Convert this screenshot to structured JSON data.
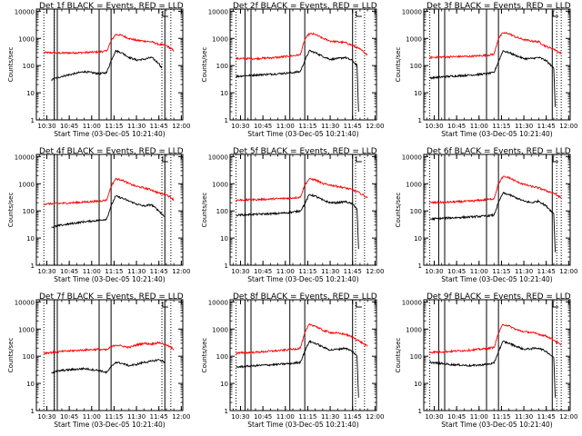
{
  "chart_data": {
    "type": "line",
    "layout": "3x3 grid",
    "x_axis": {
      "label": "Start Time (03-Dec-05 10:21:40)",
      "ticks": [
        "10:30",
        "10:45",
        "11:00",
        "11:15",
        "11:30",
        "11:45",
        "12:00"
      ],
      "range": [
        "10:23",
        "12:01"
      ]
    },
    "y_axis": {
      "label": "Counts/sec",
      "scale": "log",
      "ticks": [
        "1",
        "10",
        "100",
        "1000",
        "10000"
      ],
      "range": [
        1,
        12000
      ]
    },
    "grid": false,
    "series_colors": {
      "events": "#000000",
      "lld": "#ff0000"
    },
    "panels": [
      {
        "title": "Det 1f BLACK = Events, RED = LLD",
        "vlines_solid": [
          "10:35",
          "10:37",
          "11:05",
          "11:13",
          "11:49"
        ],
        "vlines_dotted": [
          "10:28",
          "10:35",
          "11:47",
          "11:53"
        ],
        "series": [
          {
            "key": "lld",
            "x": [
              "10:28",
              "10:40",
              "10:55",
              "11:05",
              "11:10",
              "11:13",
              "11:16",
              "11:20",
              "11:25",
              "11:30",
              "11:35",
              "11:40",
              "11:45",
              "11:50",
              "11:55"
            ],
            "y": [
              300,
              290,
              300,
              320,
              340,
              800,
              1400,
              1300,
              1000,
              850,
              800,
              750,
              600,
              550,
              350
            ]
          },
          {
            "key": "events",
            "x": [
              "10:33",
              "10:40",
              "10:55",
              "11:05",
              "11:10",
              "11:13",
              "11:16",
              "11:20",
              "11:25",
              "11:30",
              "11:35",
              "11:40",
              "11:45",
              "11:47"
            ],
            "y": [
              30,
              40,
              60,
              50,
              55,
              150,
              350,
              300,
              200,
              160,
              170,
              200,
              120,
              80
            ]
          }
        ]
      },
      {
        "title": "Det 2f BLACK = Events, RED = LLD",
        "vlines_solid": [
          "10:33",
          "10:37",
          "11:03",
          "11:13",
          "11:45"
        ],
        "vlines_dotted": [
          "10:27",
          "11:47",
          "11:53"
        ],
        "series": [
          {
            "key": "lld",
            "x": [
              "10:27",
              "10:40",
              "10:55",
              "11:05",
              "11:10",
              "11:13",
              "11:16",
              "11:20",
              "11:25",
              "11:30",
              "11:35",
              "11:40",
              "11:45",
              "11:50",
              "11:55"
            ],
            "y": [
              180,
              180,
              200,
              230,
              250,
              900,
              1500,
              1400,
              1000,
              800,
              750,
              700,
              550,
              400,
              250
            ]
          },
          {
            "key": "events",
            "x": [
              "10:27",
              "10:40",
              "10:55",
              "11:05",
              "11:10",
              "11:13",
              "11:16",
              "11:20",
              "11:25",
              "11:30",
              "11:35",
              "11:40",
              "11:45",
              "11:48",
              "11:49"
            ],
            "y": [
              40,
              45,
              50,
              55,
              60,
              150,
              350,
              300,
              220,
              170,
              180,
              200,
              150,
              100,
              2
            ]
          }
        ]
      },
      {
        "title": "Det 3f BLACK = Events, RED = LLD",
        "vlines_solid": [
          "10:33",
          "10:37",
          "11:05",
          "11:13",
          "11:49"
        ],
        "vlines_dotted": [
          "10:27",
          "11:52",
          "11:55"
        ],
        "series": [
          {
            "key": "lld",
            "x": [
              "10:27",
              "10:40",
              "10:55",
              "11:05",
              "11:10",
              "11:13",
              "11:16",
              "11:20",
              "11:25",
              "11:30",
              "11:35",
              "11:40",
              "11:45",
              "11:50",
              "11:55"
            ],
            "y": [
              200,
              210,
              220,
              240,
              260,
              1000,
              1600,
              1500,
              1100,
              900,
              800,
              750,
              500,
              400,
              280
            ]
          },
          {
            "key": "events",
            "x": [
              "10:27",
              "10:40",
              "10:55",
              "11:05",
              "11:10",
              "11:13",
              "11:16",
              "11:20",
              "11:25",
              "11:30",
              "11:35",
              "11:40",
              "11:45",
              "11:50",
              "11:51"
            ],
            "y": [
              35,
              40,
              45,
              50,
              55,
              140,
              350,
              300,
              230,
              180,
              180,
              200,
              150,
              80,
              3
            ]
          }
        ]
      },
      {
        "title": "Det 4f BLACK = Events, RED = LLD",
        "vlines_solid": [
          "10:35",
          "10:37",
          "11:05",
          "11:13",
          "11:49"
        ],
        "vlines_dotted": [
          "10:28",
          "10:35",
          "11:47",
          "11:53"
        ],
        "series": [
          {
            "key": "lld",
            "x": [
              "10:28",
              "10:40",
              "10:55",
              "11:05",
              "11:10",
              "11:13",
              "11:16",
              "11:20",
              "11:25",
              "11:30",
              "11:35",
              "11:40",
              "11:45",
              "11:50",
              "11:55"
            ],
            "y": [
              180,
              190,
              210,
              230,
              250,
              800,
              1500,
              1400,
              1000,
              800,
              700,
              600,
              450,
              400,
              260
            ]
          },
          {
            "key": "events",
            "x": [
              "10:33",
              "10:40",
              "10:55",
              "11:05",
              "11:10",
              "11:13",
              "11:16",
              "11:20",
              "11:25",
              "11:30",
              "11:35",
              "11:40",
              "11:45",
              "11:49"
            ],
            "y": [
              25,
              30,
              40,
              45,
              50,
              150,
              350,
              300,
              230,
              180,
              150,
              170,
              100,
              60
            ]
          }
        ]
      },
      {
        "title": "Det 5f BLACK = Events, RED = LLD",
        "vlines_solid": [
          "10:33",
          "10:37",
          "11:03",
          "11:13",
          "11:45"
        ],
        "vlines_dotted": [
          "10:27",
          "11:47",
          "11:53"
        ],
        "series": [
          {
            "key": "lld",
            "x": [
              "10:27",
              "10:40",
              "10:55",
              "11:05",
              "11:10",
              "11:13",
              "11:16",
              "11:20",
              "11:25",
              "11:30",
              "11:35",
              "11:40",
              "11:45",
              "11:50",
              "11:55"
            ],
            "y": [
              250,
              260,
              280,
              300,
              320,
              900,
              1500,
              1400,
              1000,
              900,
              800,
              700,
              600,
              450,
              300
            ]
          },
          {
            "key": "events",
            "x": [
              "10:27",
              "10:40",
              "10:55",
              "11:05",
              "11:10",
              "11:13",
              "11:16",
              "11:20",
              "11:25",
              "11:30",
              "11:35",
              "11:40",
              "11:45",
              "11:48",
              "11:49"
            ],
            "y": [
              70,
              75,
              80,
              90,
              100,
              180,
              400,
              350,
              250,
              200,
              200,
              220,
              180,
              120,
              4
            ]
          }
        ]
      },
      {
        "title": "Det 6f BLACK = Events, RED = LLD",
        "vlines_solid": [
          "10:33",
          "10:37",
          "11:05",
          "11:13",
          "11:49"
        ],
        "vlines_dotted": [
          "10:27",
          "11:52",
          "11:55"
        ],
        "series": [
          {
            "key": "lld",
            "x": [
              "10:27",
              "10:40",
              "10:55",
              "11:05",
              "11:10",
              "11:13",
              "11:16",
              "11:20",
              "11:25",
              "11:30",
              "11:35",
              "11:40",
              "11:45",
              "11:50",
              "11:55"
            ],
            "y": [
              200,
              210,
              230,
              260,
              280,
              1000,
              1800,
              1700,
              1200,
              950,
              800,
              700,
              550,
              450,
              300
            ]
          },
          {
            "key": "events",
            "x": [
              "10:27",
              "10:40",
              "10:55",
              "11:05",
              "11:10",
              "11:13",
              "11:16",
              "11:20",
              "11:25",
              "11:30",
              "11:35",
              "11:40",
              "11:45",
              "11:50",
              "11:51"
            ],
            "y": [
              50,
              55,
              60,
              65,
              70,
              200,
              450,
              400,
              300,
              230,
              200,
              230,
              150,
              80,
              3
            ]
          }
        ]
      },
      {
        "title": "Det 7f BLACK = Events, RED = LLD",
        "vlines_solid": [
          "10:35",
          "10:37",
          "11:05",
          "11:13",
          "11:49"
        ],
        "vlines_dotted": [
          "10:28",
          "10:35",
          "11:47",
          "11:53"
        ],
        "series": [
          {
            "key": "lld",
            "x": [
              "10:28",
              "10:40",
              "10:55",
              "11:05",
              "11:10",
              "11:13",
              "11:16",
              "11:20",
              "11:25",
              "11:30",
              "11:35",
              "11:40",
              "11:45",
              "11:50",
              "11:55"
            ],
            "y": [
              130,
              150,
              170,
              180,
              170,
              220,
              260,
              240,
              210,
              260,
              300,
              280,
              320,
              260,
              180
            ]
          },
          {
            "key": "events",
            "x": [
              "10:33",
              "10:40",
              "10:55",
              "11:05",
              "11:10",
              "11:13",
              "11:16",
              "11:20",
              "11:25",
              "11:30",
              "11:35",
              "11:40",
              "11:45",
              "11:49"
            ],
            "y": [
              25,
              30,
              35,
              30,
              25,
              40,
              60,
              55,
              45,
              50,
              60,
              65,
              75,
              60
            ]
          }
        ]
      },
      {
        "title": "Det 8f BLACK = Events, RED = LLD",
        "vlines_solid": [
          "10:33",
          "10:37",
          "11:03",
          "11:13",
          "11:45"
        ],
        "vlines_dotted": [
          "10:27",
          "11:47",
          "11:53"
        ],
        "series": [
          {
            "key": "lld",
            "x": [
              "10:27",
              "10:40",
              "10:55",
              "11:05",
              "11:10",
              "11:13",
              "11:16",
              "11:20",
              "11:25",
              "11:30",
              "11:35",
              "11:40",
              "11:45",
              "11:50",
              "11:55"
            ],
            "y": [
              130,
              140,
              160,
              180,
              200,
              700,
              1500,
              1300,
              900,
              750,
              700,
              650,
              500,
              350,
              230
            ]
          },
          {
            "key": "events",
            "x": [
              "10:27",
              "10:40",
              "10:55",
              "11:05",
              "11:10",
              "11:13",
              "11:16",
              "11:20",
              "11:25",
              "11:30",
              "11:35",
              "11:40",
              "11:45",
              "11:48",
              "11:49"
            ],
            "y": [
              40,
              45,
              50,
              55,
              60,
              150,
              350,
              300,
              220,
              170,
              180,
              200,
              150,
              100,
              3
            ]
          }
        ]
      },
      {
        "title": "Det 9f BLACK = Events, RED = LLD",
        "vlines_solid": [
          "10:33",
          "10:37",
          "11:05",
          "11:13",
          "11:49"
        ],
        "vlines_dotted": [
          "10:27",
          "11:52",
          "11:55"
        ],
        "series": [
          {
            "key": "lld",
            "x": [
              "10:27",
              "10:40",
              "10:55",
              "11:05",
              "11:10",
              "11:13",
              "11:16",
              "11:20",
              "11:25",
              "11:30",
              "11:35",
              "11:40",
              "11:45",
              "11:50",
              "11:55"
            ],
            "y": [
              140,
              150,
              170,
              190,
              210,
              700,
              1500,
              1300,
              950,
              800,
              750,
              650,
              550,
              400,
              250
            ]
          },
          {
            "key": "events",
            "x": [
              "10:27",
              "10:40",
              "10:55",
              "11:05",
              "11:10",
              "11:13",
              "11:16",
              "11:20",
              "11:25",
              "11:30",
              "11:35",
              "11:40",
              "11:45",
              "11:50",
              "11:51"
            ],
            "y": [
              60,
              50,
              45,
              50,
              55,
              150,
              350,
              300,
              230,
              180,
              190,
              200,
              150,
              90,
              3
            ]
          }
        ]
      }
    ]
  }
}
